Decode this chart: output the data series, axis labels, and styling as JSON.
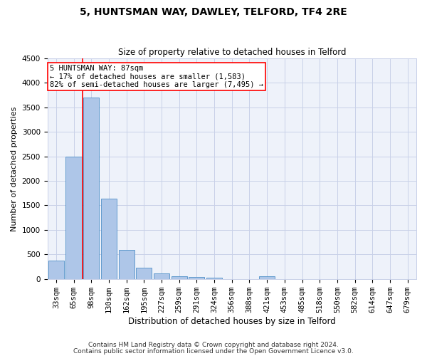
{
  "title": "5, HUNTSMAN WAY, DAWLEY, TELFORD, TF4 2RE",
  "subtitle": "Size of property relative to detached houses in Telford",
  "xlabel": "Distribution of detached houses by size in Telford",
  "ylabel": "Number of detached properties",
  "categories": [
    "33sqm",
    "65sqm",
    "98sqm",
    "130sqm",
    "162sqm",
    "195sqm",
    "227sqm",
    "259sqm",
    "291sqm",
    "324sqm",
    "356sqm",
    "388sqm",
    "421sqm",
    "453sqm",
    "485sqm",
    "518sqm",
    "550sqm",
    "582sqm",
    "614sqm",
    "647sqm",
    "679sqm"
  ],
  "values": [
    370,
    2500,
    3700,
    1640,
    590,
    225,
    105,
    60,
    40,
    30,
    0,
    0,
    60,
    0,
    0,
    0,
    0,
    0,
    0,
    0,
    0
  ],
  "bar_color": "#aec6e8",
  "bar_edge_color": "#5090c8",
  "ylim": [
    0,
    4500
  ],
  "yticks": [
    0,
    500,
    1000,
    1500,
    2000,
    2500,
    3000,
    3500,
    4000,
    4500
  ],
  "red_line_x": 1.5,
  "annotation_box_text": "5 HUNTSMAN WAY: 87sqm\n← 17% of detached houses are smaller (1,583)\n82% of semi-detached houses are larger (7,495) →",
  "footer_line1": "Contains HM Land Registry data © Crown copyright and database right 2024.",
  "footer_line2": "Contains public sector information licensed under the Open Government Licence v3.0.",
  "background_color": "#eef2fa",
  "grid_color": "#c8d0e8",
  "title_fontsize": 10,
  "subtitle_fontsize": 8.5,
  "ylabel_fontsize": 8,
  "xlabel_fontsize": 8.5,
  "tick_fontsize": 7.5,
  "annotation_fontsize": 7.5,
  "footer_fontsize": 6.5
}
